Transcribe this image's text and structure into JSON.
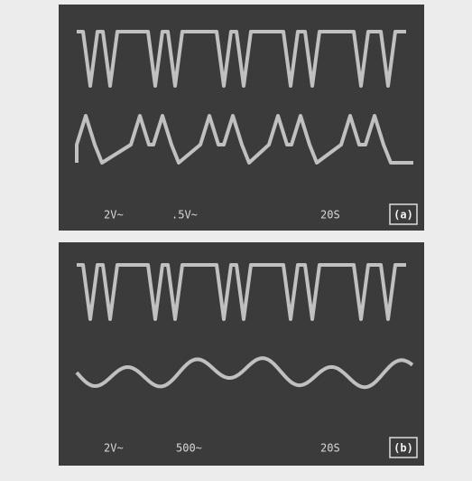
{
  "panels": [
    {
      "labels": [
        "2V~",
        ".5V~",
        "20S"
      ],
      "tag": "(a)"
    },
    {
      "labels": [
        "2V~",
        "500~",
        "20S"
      ],
      "tag": "(b)"
    }
  ]
}
